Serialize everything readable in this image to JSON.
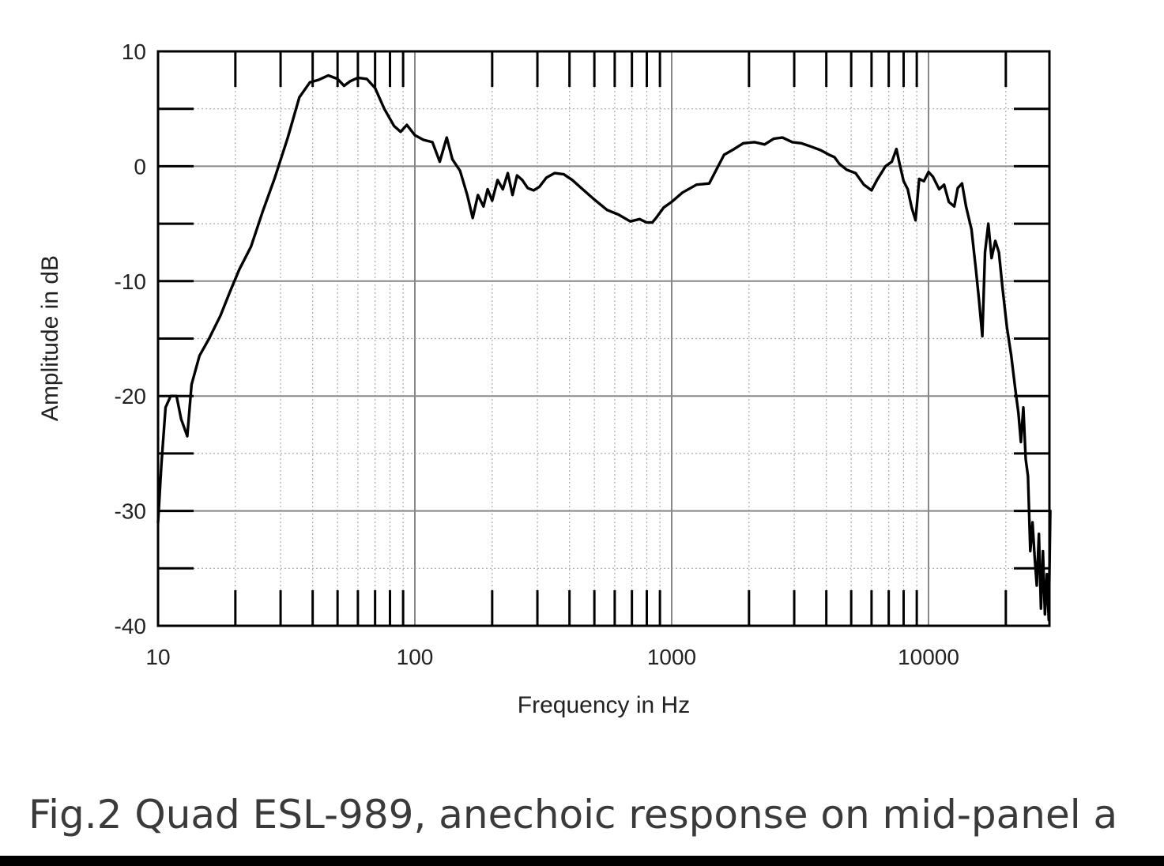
{
  "caption": "Fig.2 Quad ESL-989, anechoic response on mid-panel a",
  "chart_data": {
    "type": "line",
    "xlabel": "Frequency in Hz",
    "ylabel": "Amplitude in dB",
    "xscale": "log",
    "xlim": [
      10,
      30000
    ],
    "ylim": [
      -40,
      10
    ],
    "x_ticks": [
      10,
      100,
      1000,
      10000
    ],
    "x_tick_labels": [
      "10",
      "100",
      "1000",
      "10000"
    ],
    "y_ticks": [
      10,
      0,
      -10,
      -20,
      -30,
      -40
    ],
    "y_tick_labels": [
      "10",
      "0",
      "-10",
      "-20",
      "-30",
      "-40"
    ],
    "grid": true,
    "line_color": "#000000",
    "series": [
      {
        "x": [
          10,
          10.3,
          10.7,
          11.2,
          11.8,
          12.3,
          13.0,
          13.5,
          14.5,
          15.8,
          17.5,
          19.0,
          20.7,
          23.0,
          25.5,
          28.5,
          32.0,
          35.5,
          39.0,
          42.0,
          46.0,
          50.0,
          53.0,
          56.0,
          60.0,
          65.0,
          70.0,
          76.0,
          83.0,
          88.0,
          93.0,
          100,
          108,
          117,
          125,
          133,
          140,
          150,
          160,
          168,
          176,
          185,
          192,
          200,
          210,
          220,
          230,
          240,
          250,
          262,
          275,
          290,
          305,
          325,
          350,
          380,
          410,
          450,
          500,
          560,
          620,
          690,
          750,
          800,
          840,
          870,
          930,
          1000,
          1100,
          1250,
          1400,
          1600,
          1750,
          1900,
          2100,
          2300,
          2500,
          2700,
          2950,
          3200,
          3500,
          3800,
          4100,
          4300,
          4500,
          4800,
          5200,
          5600,
          6000,
          6300,
          6800,
          7200,
          7500,
          7700,
          8000,
          8300,
          8600,
          8900,
          9200,
          9600,
          10000,
          10400,
          11000,
          11500,
          12000,
          12600,
          13000,
          13500,
          14000,
          14700,
          15300,
          15700,
          16200,
          16600,
          17100,
          17600,
          18200,
          18800,
          19400,
          20200,
          21000,
          21800,
          22400,
          22900,
          23400,
          23900,
          24400,
          24900,
          25400,
          25900,
          26400,
          26900,
          27400,
          27900,
          28400,
          28900,
          29400,
          29800
        ],
        "y": [
          -31,
          -26,
          -21,
          -20,
          -20,
          -22,
          -23.5,
          -19,
          -16.5,
          -15,
          -13,
          -11,
          -9,
          -7,
          -4,
          -1,
          2.5,
          6.0,
          7.3,
          7.5,
          7.9,
          7.6,
          7.0,
          7.4,
          7.7,
          7.6,
          6.8,
          5.0,
          3.5,
          3.0,
          3.6,
          2.7,
          2.3,
          2.1,
          0.4,
          2.5,
          0.6,
          -0.4,
          -2.5,
          -4.5,
          -2.5,
          -3.5,
          -2.0,
          -3.0,
          -1.2,
          -2.0,
          -0.6,
          -2.5,
          -0.8,
          -1.2,
          -1.9,
          -2.1,
          -1.8,
          -1.0,
          -0.6,
          -0.7,
          -1.2,
          -2.0,
          -2.9,
          -3.8,
          -4.2,
          -4.8,
          -4.6,
          -4.9,
          -4.9,
          -4.5,
          -3.6,
          -3.1,
          -2.3,
          -1.6,
          -1.5,
          1.0,
          1.5,
          2.0,
          2.1,
          1.9,
          2.4,
          2.5,
          2.1,
          2.0,
          1.7,
          1.4,
          1.0,
          0.8,
          0.2,
          -0.3,
          -0.6,
          -1.6,
          -2.1,
          -1.2,
          0.0,
          0.4,
          1.5,
          0.3,
          -1.3,
          -2.0,
          -3.6,
          -4.7,
          -1.1,
          -1.3,
          -0.5,
          -0.9,
          -2.0,
          -1.6,
          -3.1,
          -3.5,
          -1.9,
          -1.5,
          -3.5,
          -5.5,
          -9.0,
          -11.5,
          -14.8,
          -7.5,
          -5.0,
          -8.0,
          -6.5,
          -7.5,
          -10.5,
          -14.0,
          -16.5,
          -19.5,
          -21.5,
          -24.0,
          -21.0,
          -25.5,
          -27.0,
          -33.5,
          -31.0,
          -34.0,
          -36.5,
          -32.0,
          -38.5,
          -33.5,
          -39.0,
          -35.5,
          -39.5,
          -30.0
        ]
      }
    ]
  }
}
